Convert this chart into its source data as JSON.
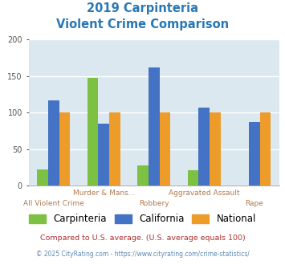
{
  "title_line1": "2019 Carpinteria",
  "title_line2": "Violent Crime Comparison",
  "title_color": "#2878b8",
  "categories": [
    "All Violent Crime",
    "Murder & Mans...",
    "Robbery",
    "Aggravated Assault",
    "Rape"
  ],
  "label_row": [
    "bottom",
    "top",
    "bottom",
    "top",
    "bottom"
  ],
  "series": {
    "Carpinteria": [
      22,
      148,
      28,
      21,
      0
    ],
    "California": [
      117,
      85,
      162,
      107,
      87
    ],
    "National": [
      100,
      100,
      100,
      100,
      100
    ]
  },
  "colors": {
    "Carpinteria": "#7dc142",
    "California": "#4472c4",
    "National": "#ed9c2a"
  },
  "ylim": [
    0,
    200
  ],
  "yticks": [
    0,
    50,
    100,
    150,
    200
  ],
  "background_color": "#dce8ef",
  "grid_color": "#ffffff",
  "footnote1": "Compared to U.S. average. (U.S. average equals 100)",
  "footnote2": "© 2025 CityRating.com - https://www.cityrating.com/crime-statistics/",
  "footnote1_color": "#b03030",
  "footnote2_color": "#5b8ab5",
  "label_color": "#b07a50",
  "bar_width": 0.22
}
